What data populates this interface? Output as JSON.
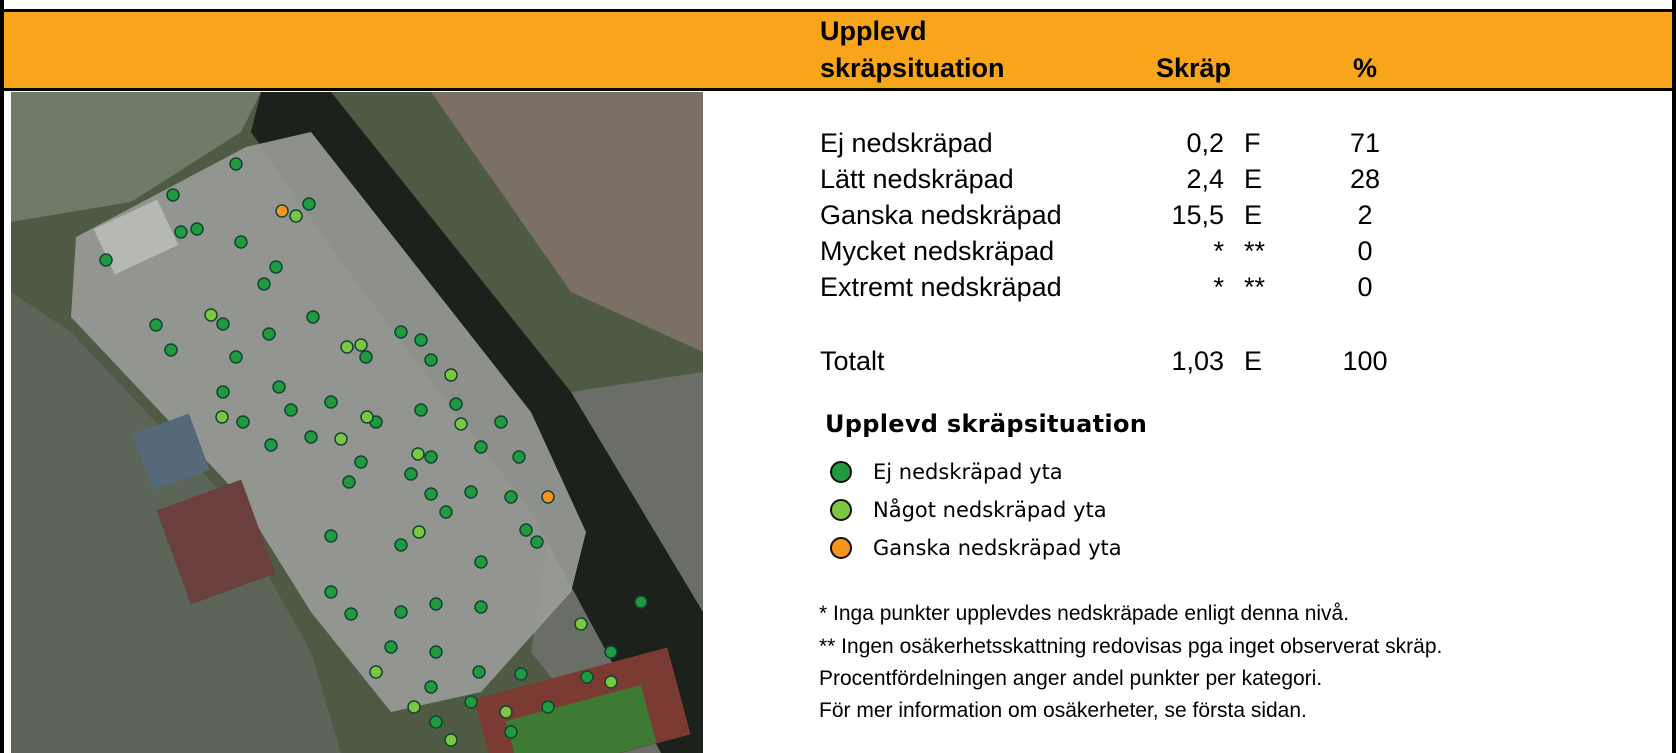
{
  "header": {
    "category": "Upplevd skräpsituation",
    "value": "Skräp",
    "percent": "%"
  },
  "table": {
    "rows": [
      {
        "label": "Ej nedskräpad",
        "value": "0,2",
        "grade": "F",
        "percent": 71
      },
      {
        "label": "Lätt nedskräpad",
        "value": "2,4",
        "grade": "E",
        "percent": 28
      },
      {
        "label": "Ganska nedskräpad",
        "value": "15,5",
        "grade": "E",
        "percent": 2
      },
      {
        "label": "Mycket nedskräpad",
        "value": "*",
        "grade": "**",
        "percent": 0
      },
      {
        "label": "Extremt nedskräpad",
        "value": "*",
        "grade": "**",
        "percent": 0
      }
    ],
    "total": {
      "label": "Totalt",
      "value": "1,03",
      "grade": "E",
      "percent": 100
    }
  },
  "legend": {
    "title": "Upplevd skräpsituation",
    "items": [
      {
        "label": "Ej nedskräpad yta",
        "color": "#1f9a3e"
      },
      {
        "label": "Något nedskräpad yta",
        "color": "#7cc642"
      },
      {
        "label": "Ganska nedskräpad yta",
        "color": "#f7941d"
      }
    ]
  },
  "footnotes": [
    "* Inga punkter upplevdes nedskräpade enligt denna nivå.",
    "** Ingen osäkerhetsskattning redovisas pga inget observerat skräp.",
    "Procentfördelningen anger andel punkter per kategori.",
    "För mer information om osäkerheter, se första sidan."
  ]
}
